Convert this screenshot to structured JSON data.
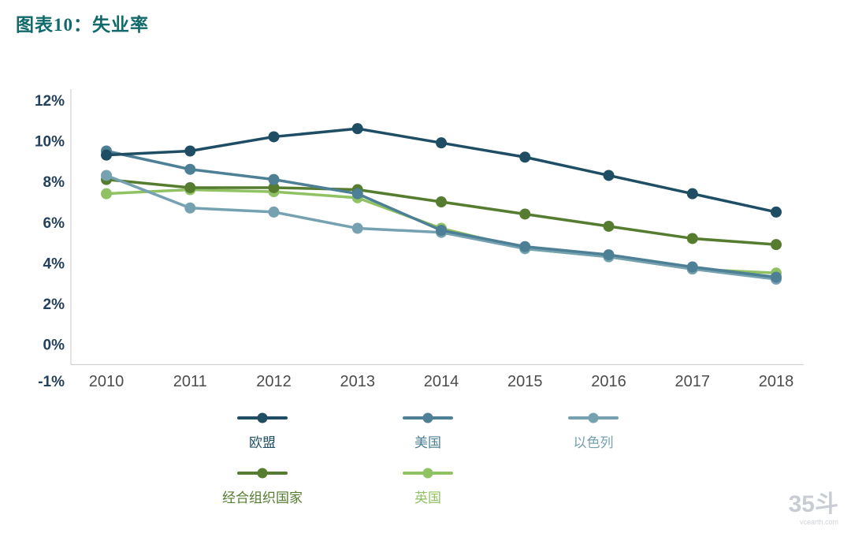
{
  "page": {
    "title": "图表10：失业率",
    "watermark": {
      "brand": "35斗",
      "domain": "vcearth.com"
    }
  },
  "chart_data": {
    "type": "line",
    "title": "失业率",
    "xlabel": "",
    "ylabel": "",
    "unit": "%",
    "grid": false,
    "legend_position": "bottom",
    "ylim": [
      -1,
      12
    ],
    "y_ticks": [
      12,
      10,
      8,
      6,
      4,
      2,
      0,
      -1
    ],
    "x": [
      "2010",
      "2011",
      "2012",
      "2013",
      "2014",
      "2015",
      "2016",
      "2017",
      "2018"
    ],
    "series": [
      {
        "name": "欧盟",
        "color": "#1f4e64",
        "values": [
          9.3,
          9.5,
          10.2,
          10.6,
          9.9,
          9.2,
          8.3,
          7.4,
          6.5
        ]
      },
      {
        "name": "美国",
        "color": "#4d7f95",
        "values": [
          9.5,
          8.6,
          8.1,
          7.4,
          5.6,
          4.8,
          4.4,
          3.8,
          3.3
        ]
      },
      {
        "name": "以色列",
        "color": "#76a1b0",
        "values": [
          8.3,
          6.7,
          6.5,
          5.7,
          5.5,
          4.7,
          4.3,
          3.7,
          3.2
        ]
      },
      {
        "name": "经合组织国家",
        "color": "#557c2f",
        "values": [
          8.1,
          7.7,
          7.7,
          7.6,
          7.0,
          6.4,
          5.8,
          5.2,
          4.9
        ]
      },
      {
        "name": "英国",
        "color": "#90c263",
        "values": [
          7.4,
          7.6,
          7.5,
          7.2,
          5.7,
          4.7,
          4.3,
          3.7,
          3.5
        ]
      }
    ]
  }
}
